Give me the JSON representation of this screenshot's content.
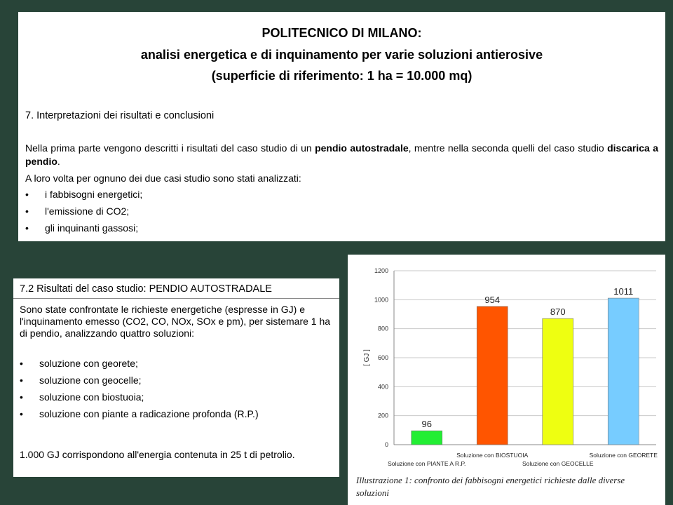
{
  "header": {
    "line1": "POLITECNICO DI MILANO:",
    "line2": "analisi energetica e di inquinamento per varie soluzioni antierosive",
    "line3": "(superficie di riferimento: 1 ha = 10.000 mq)"
  },
  "section7": {
    "title": "7. Interpretazioni dei risultati e conclusioni",
    "intro_a": "Nella prima parte vengono descritti i risultati del caso studio di un ",
    "intro_b": "pendio autostradale",
    "intro_c": ", mentre nella seconda quelli del caso studio ",
    "intro_d": "discarica a pendio",
    "intro_e": ".",
    "intro2": "A loro volta per ognuno dei due casi studio sono stati analizzati:",
    "bullet_symbol": "•",
    "bullets": [
      "i fabbisogni energetici;",
      "l'emissione di CO2;",
      "gli inquinanti gassosi;"
    ]
  },
  "section72": {
    "title": "7.2  Risultati del caso studio: PENDIO AUTOSTRADALE",
    "para1": "Sono state confrontate le richieste energetiche (espresse in GJ) e l'inquinamento emesso (CO2, CO, NOx, SOx e pm), per sistemare 1 ha di pendio, analizzando quattro soluzioni:",
    "bullet_symbol": "•",
    "bullets": [
      "soluzione con georete;",
      "soluzione con geocelle;",
      "soluzione con biostuoia;",
      "soluzione con piante a radicazione profonda (R.P.)"
    ],
    "para2": "1.000 GJ corrispondono all'energia contenuta in 25 t di petrolio."
  },
  "chart_data": {
    "type": "bar",
    "categories": [
      "Soluzione con PIANTE A R.P.",
      "Soluzione con BIOSTUOIA",
      "Soluzione con GEOCELLE",
      "Soluzione con GEORETE"
    ],
    "values": [
      96,
      954,
      870,
      1011
    ],
    "data_labels": [
      "96",
      "954",
      "870",
      "1011"
    ],
    "colors": [
      "#22ee33",
      "#ff5500",
      "#eeff11",
      "#77ccff"
    ],
    "ylabel": "[ GJ ]",
    "ylim": [
      0,
      1200
    ],
    "yticks": [
      0,
      200,
      400,
      600,
      800,
      1000,
      1200
    ],
    "grid": true,
    "legend": "none"
  },
  "caption": "Illustrazione 1: confronto dei fabbisogni energetici richieste dalle diverse soluzioni"
}
